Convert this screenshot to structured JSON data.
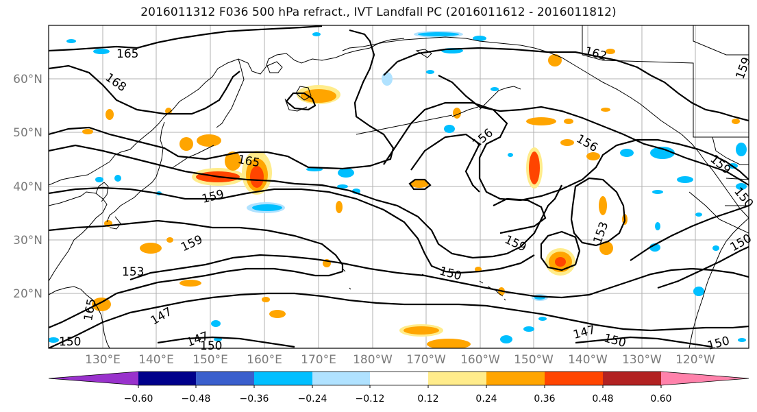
{
  "title": "2016011312 F036 500 hPa refract., IVT Landfall PC (2016011612 - 2016011812)",
  "map": {
    "lat_labels": [
      "60°N",
      "50°N",
      "40°N",
      "30°N",
      "20°N"
    ],
    "lon_labels": [
      "130°E",
      "140°E",
      "150°E",
      "160°E",
      "170°E",
      "180°W",
      "170°W",
      "160°W",
      "150°W",
      "140°W",
      "130°W",
      "120°W"
    ],
    "contour_labels": [
      "165",
      "168",
      "162",
      "165",
      "159",
      "159",
      "153",
      "147",
      "147",
      "150",
      "156",
      "156",
      "159",
      "153",
      "159",
      "150",
      "147",
      "150",
      "150",
      "159",
      "150",
      "150",
      "165",
      "150"
    ],
    "contour_color": "#000000",
    "grid_color": "#b0b0b0",
    "coastline_color": "#000000"
  },
  "colorbar": {
    "colors": [
      "#9932cc",
      "#00008b",
      "#3a5fcd",
      "#00bfff",
      "#b0e2ff",
      "#ffffff",
      "#ffec8b",
      "#ffa500",
      "#ff4500",
      "#b22222",
      "#ff82ab"
    ],
    "tick_labels": [
      "−0.60",
      "−0.48",
      "−0.36",
      "−0.24",
      "−0.12",
      "0.12",
      "0.24",
      "0.36",
      "0.48",
      "0.60"
    ]
  }
}
